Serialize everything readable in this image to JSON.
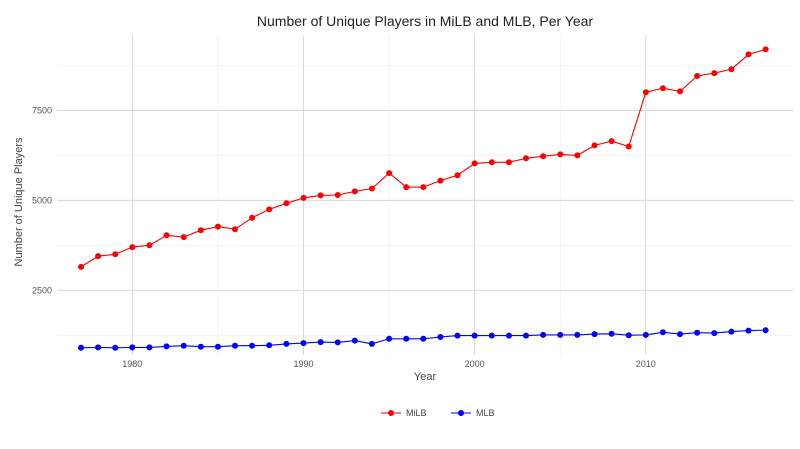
{
  "chart_data": {
    "type": "line",
    "title": "Number of Unique Players in MiLB and MLB, Per Year",
    "xlabel": "Year",
    "ylabel": "Number of Unique Players",
    "xlim": [
      1975.6,
      2018.6
    ],
    "ylim": [
      700,
      9600
    ],
    "x_ticks": [
      1980,
      1990,
      2000,
      2010
    ],
    "y_ticks": [
      2500,
      5000,
      7500
    ],
    "grid": true,
    "legend_position": "bottom",
    "x": [
      1977,
      1978,
      1979,
      1980,
      1981,
      1982,
      1983,
      1984,
      1985,
      1986,
      1987,
      1988,
      1989,
      1990,
      1991,
      1992,
      1993,
      1994,
      1995,
      1996,
      1997,
      1998,
      1999,
      2000,
      2001,
      2002,
      2003,
      2004,
      2005,
      2006,
      2007,
      2008,
      2009,
      2010,
      2011,
      2012,
      2013,
      2014,
      2015,
      2016,
      2017
    ],
    "series": [
      {
        "name": "MiLB",
        "color": "#ff0000",
        "values": [
          3150,
          3450,
          3500,
          3700,
          3750,
          4030,
          3980,
          4170,
          4270,
          4200,
          4520,
          4750,
          4920,
          5070,
          5140,
          5150,
          5250,
          5330,
          5760,
          5370,
          5370,
          5550,
          5700,
          6030,
          6060,
          6060,
          6170,
          6230,
          6280,
          6250,
          6530,
          6650,
          6500,
          8010,
          8120,
          8030,
          8460,
          8540,
          8650,
          9060,
          9200
        ]
      },
      {
        "name": "MLB",
        "color": "#0000ff",
        "values": [
          900,
          910,
          900,
          910,
          910,
          940,
          960,
          930,
          930,
          960,
          960,
          970,
          1010,
          1030,
          1060,
          1050,
          1100,
          1010,
          1150,
          1150,
          1150,
          1200,
          1240,
          1240,
          1240,
          1240,
          1240,
          1260,
          1260,
          1260,
          1280,
          1290,
          1250,
          1260,
          1330,
          1280,
          1320,
          1310,
          1350,
          1380,
          1390
        ]
      }
    ]
  }
}
